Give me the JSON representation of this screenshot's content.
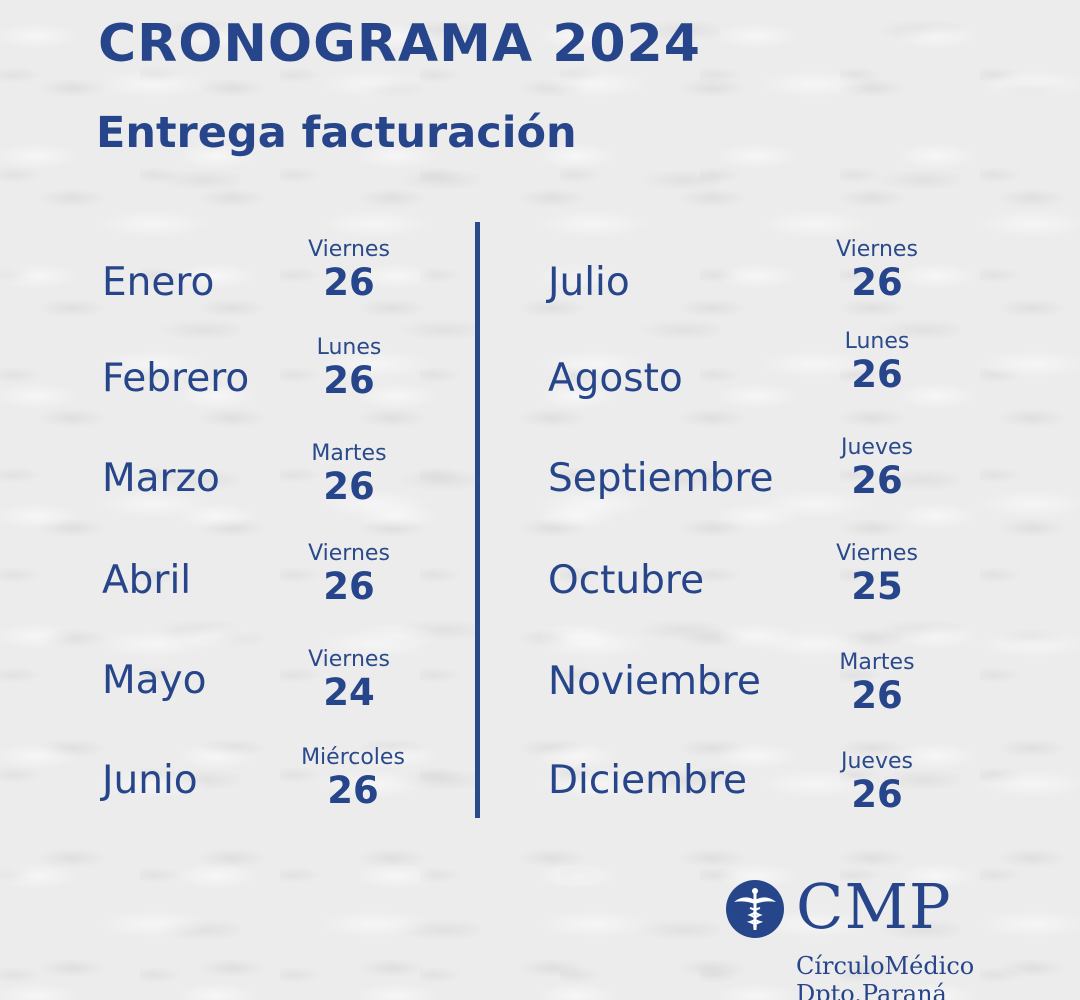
{
  "header": {
    "title": "CRONOGRAMA 2024",
    "subtitle": "Entrega facturación"
  },
  "schedule": {
    "left": [
      {
        "month": "Enero",
        "weekday": "Viernes",
        "day": "26"
      },
      {
        "month": "Febrero",
        "weekday": "Lunes",
        "day": "26"
      },
      {
        "month": "Marzo",
        "weekday": "Martes",
        "day": "26"
      },
      {
        "month": "Abril",
        "weekday": "Viernes",
        "day": "26"
      },
      {
        "month": "Mayo",
        "weekday": "Viernes",
        "day": "24"
      },
      {
        "month": "Junio",
        "weekday": "Miércoles",
        "day": "26"
      }
    ],
    "right": [
      {
        "month": "Julio",
        "weekday": "Viernes",
        "day": "26"
      },
      {
        "month": "Agosto",
        "weekday": "Lunes",
        "day": "26"
      },
      {
        "month": "Septiembre",
        "weekday": "Jueves",
        "day": "26"
      },
      {
        "month": "Octubre",
        "weekday": "Viernes",
        "day": "25"
      },
      {
        "month": "Noviembre",
        "weekday": "Martes",
        "day": "26"
      },
      {
        "month": "Diciembre",
        "weekday": "Jueves",
        "day": "26"
      }
    ]
  },
  "logo": {
    "icon": "caduceus-icon",
    "acronym": "CMP",
    "name_line1": "CírculoMédico",
    "name_line2": "Dpto.Paraná"
  },
  "colors": {
    "primary": "#27458a",
    "background": "#ececec"
  }
}
